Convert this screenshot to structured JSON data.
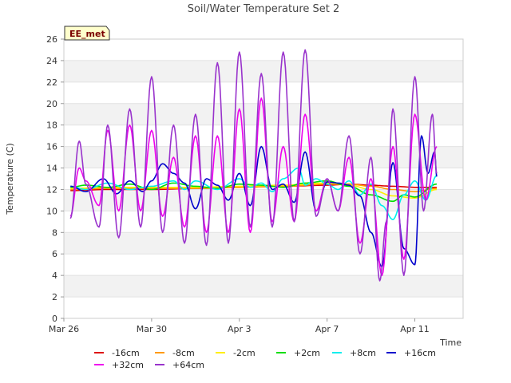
{
  "chart_data": {
    "type": "line",
    "title": "Soil/Water Temperature Set 2",
    "xlabel": "Time",
    "ylabel": "Temperature (C)",
    "ylim": [
      0,
      26
    ],
    "y_ticks": [
      0,
      2,
      4,
      6,
      8,
      10,
      12,
      14,
      16,
      18,
      20,
      22,
      24,
      26
    ],
    "x_range_days": [
      "2024-03-26",
      "2024-04-13"
    ],
    "x_tick_labels": [
      "Mar 26",
      "Mar 30",
      "Apr 3",
      "Apr 7",
      "Apr 11"
    ],
    "x_tick_days": [
      0,
      4,
      8,
      12,
      16
    ],
    "grid": "horizontal alternating bands",
    "legend_position": "bottom",
    "badge": "EE_met",
    "series": [
      {
        "name": "-16cm",
        "color": "#dd0000",
        "x": [
          0.3,
          2,
          4,
          6,
          8,
          10,
          12,
          13,
          14,
          15,
          16,
          17
        ],
        "y": [
          11.9,
          12.0,
          12.0,
          12.1,
          12.2,
          12.3,
          12.4,
          12.5,
          12.4,
          12.3,
          12.2,
          12.2
        ]
      },
      {
        "name": "-8cm",
        "color": "#ff9900",
        "x": [
          0.3,
          2,
          4,
          6,
          8,
          10,
          12,
          13,
          14,
          15,
          16,
          17
        ],
        "y": [
          12.0,
          12.1,
          12.1,
          12.1,
          12.2,
          12.3,
          12.5,
          12.5,
          12.3,
          12.0,
          11.8,
          12.1
        ]
      },
      {
        "name": "-2cm",
        "color": "#ffee00",
        "x": [
          0.3,
          2,
          4,
          6,
          8,
          10,
          12,
          13,
          14,
          15,
          16,
          17
        ],
        "y": [
          12.1,
          12.2,
          12.2,
          12.2,
          12.3,
          12.4,
          12.6,
          12.4,
          12.0,
          11.4,
          11.2,
          12.0
        ]
      },
      {
        "name": "+2cm",
        "color": "#00dd00",
        "x": [
          0.3,
          1,
          2,
          3,
          4,
          5,
          6,
          7,
          8,
          9,
          10,
          11,
          12,
          13,
          14,
          15,
          15.5,
          16,
          17
        ],
        "y": [
          12.2,
          12.4,
          12.2,
          12.5,
          12.0,
          12.6,
          12.3,
          12.1,
          12.5,
          12.4,
          12.2,
          12.6,
          12.8,
          12.3,
          11.5,
          10.9,
          11.5,
          11.3,
          12.5
        ]
      },
      {
        "name": "+8cm",
        "color": "#00eeee",
        "x": [
          0.3,
          1,
          2,
          3,
          4,
          5,
          5.5,
          6,
          7,
          8,
          8.5,
          9,
          9.5,
          10,
          10.7,
          11,
          11.5,
          12,
          12.5,
          13,
          13.5,
          14,
          14.5,
          15,
          15.5,
          16,
          16.5,
          17
        ],
        "y": [
          12.3,
          12.0,
          12.6,
          12.0,
          12.3,
          12.8,
          12.0,
          12.8,
          12.0,
          13.0,
          12.2,
          12.6,
          11.8,
          13.0,
          14.0,
          12.4,
          13.0,
          12.5,
          12.0,
          12.8,
          11.5,
          12.5,
          10.5,
          9.2,
          11.5,
          12.8,
          11.0,
          13.3
        ]
      },
      {
        "name": "+16cm",
        "color": "#0000cc",
        "x": [
          0.3,
          1,
          1.8,
          2.4,
          3,
          3.6,
          4,
          4.5,
          5,
          5.5,
          6,
          6.5,
          7,
          7.5,
          8,
          8.5,
          9,
          9.5,
          10,
          10.5,
          11,
          11.5,
          12,
          12.5,
          13,
          13.5,
          14,
          14.5,
          15,
          15.5,
          16,
          16.3,
          16.6,
          16.9,
          17
        ],
        "y": [
          12.3,
          11.8,
          13.0,
          11.6,
          12.8,
          11.8,
          12.8,
          14.4,
          13.5,
          12.6,
          10.2,
          13.0,
          12.4,
          11.0,
          13.5,
          10.5,
          16.0,
          12.0,
          12.5,
          10.8,
          15.5,
          10.0,
          12.7,
          12.6,
          12.4,
          11.4,
          8.0,
          4.8,
          14.5,
          6.5,
          5.0,
          17.0,
          13.5,
          15.5,
          13.2
        ]
      },
      {
        "name": "+32cm",
        "color": "#ee00ee",
        "x": [
          0.3,
          0.7,
          1,
          1.6,
          2,
          2.5,
          3,
          3.5,
          4,
          4.5,
          5,
          5.5,
          6,
          6.5,
          7,
          7.5,
          8,
          8.5,
          9,
          9.5,
          10,
          10.5,
          11,
          11.5,
          12,
          12.5,
          13,
          13.5,
          14,
          14.5,
          15,
          15.5,
          16,
          16.5,
          17
        ],
        "y": [
          9.5,
          14.0,
          12.8,
          10.5,
          17.5,
          10.0,
          18.0,
          10.0,
          17.5,
          9.5,
          15.0,
          8.5,
          17.0,
          8.0,
          17.0,
          8.0,
          19.5,
          8.0,
          20.5,
          9.0,
          16.0,
          9.0,
          19.0,
          10.0,
          13.0,
          10.0,
          15.0,
          7.0,
          13.0,
          4.0,
          16.0,
          5.5,
          19.0,
          11.0,
          16.0
        ]
      },
      {
        "name": "+64cm",
        "color": "#9933cc",
        "x": [
          0.3,
          0.7,
          1,
          1.6,
          2,
          2.5,
          3,
          3.5,
          4,
          4.5,
          5,
          5.5,
          6,
          6.5,
          7,
          7.5,
          8,
          8.5,
          9,
          9.5,
          10,
          10.5,
          11,
          11.5,
          12,
          12.5,
          13,
          13.5,
          14,
          14.4,
          14.7,
          15,
          15.5,
          16,
          16.4,
          16.8,
          17
        ],
        "y": [
          9.3,
          16.5,
          12.5,
          8.5,
          18.0,
          7.5,
          19.5,
          8.5,
          22.5,
          8.0,
          18.0,
          7.0,
          19.0,
          6.8,
          23.8,
          7.0,
          24.8,
          8.5,
          22.8,
          8.5,
          24.8,
          9.0,
          25.0,
          9.5,
          13.0,
          10.0,
          17.0,
          6.0,
          15.0,
          3.5,
          9.0,
          19.5,
          4.0,
          22.5,
          10.0,
          19.0,
          13.5
        ]
      }
    ]
  }
}
